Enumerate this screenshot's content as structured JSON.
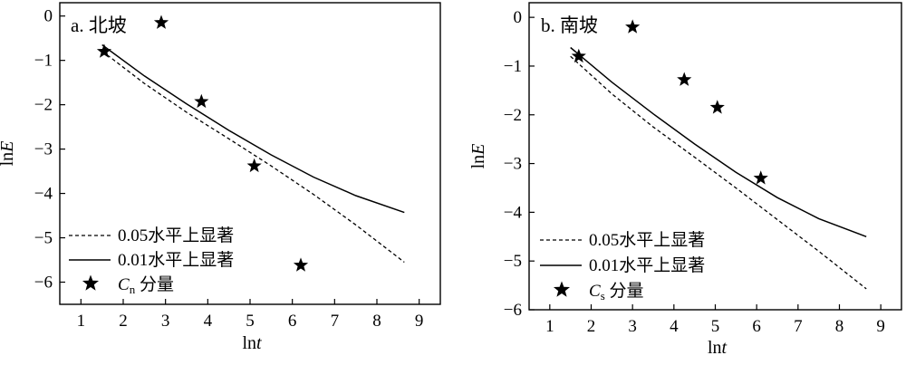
{
  "chart_data": [
    {
      "type": "scatter",
      "title": "a. 北坡",
      "xlabel_base": "ln",
      "xlabel_var": "t",
      "ylabel_base": "ln",
      "ylabel_var": "E",
      "xlim": [
        0.5,
        9.5
      ],
      "ylim": [
        -6.5,
        0.3
      ],
      "xticks": [
        1,
        2,
        3,
        4,
        5,
        6,
        7,
        8,
        9
      ],
      "yticks": [
        0,
        -1,
        -2,
        -3,
        -4,
        -5,
        -6
      ],
      "series": [
        {
          "name": "0.05水平上显著",
          "kind": "dashed-line",
          "x": [
            1.5,
            2.5,
            3.5,
            4.5,
            5.5,
            6.5,
            7.5,
            8.65
          ],
          "y": [
            -0.79,
            -1.52,
            -2.17,
            -2.77,
            -3.38,
            -4.02,
            -4.71,
            -5.55
          ]
        },
        {
          "name": "0.01水平上显著",
          "kind": "solid-line",
          "x": [
            1.5,
            2.5,
            3.5,
            4.5,
            5.5,
            6.5,
            7.5,
            8.65
          ],
          "y": [
            -0.65,
            -1.35,
            -1.98,
            -2.58,
            -3.13,
            -3.63,
            -4.05,
            -4.43
          ]
        },
        {
          "name_base": "C",
          "name_sub": "n",
          "name_suffix": " 分量",
          "kind": "star",
          "x": [
            1.55,
            2.9,
            3.85,
            5.1,
            6.2
          ],
          "y": [
            -0.8,
            -0.15,
            -1.93,
            -3.38,
            -5.62
          ]
        }
      ]
    },
    {
      "type": "scatter",
      "title": "b. 南坡",
      "xlabel_base": "ln",
      "xlabel_var": "t",
      "ylabel_base": "ln",
      "ylabel_var": "E",
      "xlim": [
        0.5,
        9.5
      ],
      "ylim": [
        -6.0,
        0.3
      ],
      "xticks": [
        1,
        2,
        3,
        4,
        5,
        6,
        7,
        8,
        9
      ],
      "yticks": [
        0,
        -1,
        -2,
        -3,
        -4,
        -5,
        -6
      ],
      "series": [
        {
          "name": "0.05水平上显著",
          "kind": "dashed-line",
          "x": [
            1.5,
            2.5,
            3.5,
            4.5,
            5.5,
            6.5,
            7.5,
            8.65
          ],
          "y": [
            -0.8,
            -1.57,
            -2.25,
            -2.87,
            -3.5,
            -4.15,
            -4.8,
            -5.57
          ]
        },
        {
          "name": "0.01水平上显著",
          "kind": "solid-line",
          "x": [
            1.5,
            2.5,
            3.5,
            4.5,
            5.5,
            6.5,
            7.5,
            8.65
          ],
          "y": [
            -0.62,
            -1.33,
            -1.98,
            -2.6,
            -3.18,
            -3.7,
            -4.13,
            -4.5
          ]
        },
        {
          "name_base": "C",
          "name_sub": "s",
          "name_suffix": " 分量",
          "kind": "star",
          "x": [
            1.7,
            3.0,
            4.25,
            5.05,
            6.1
          ],
          "y": [
            -0.8,
            -0.2,
            -1.28,
            -1.85,
            -3.3
          ]
        }
      ]
    }
  ]
}
